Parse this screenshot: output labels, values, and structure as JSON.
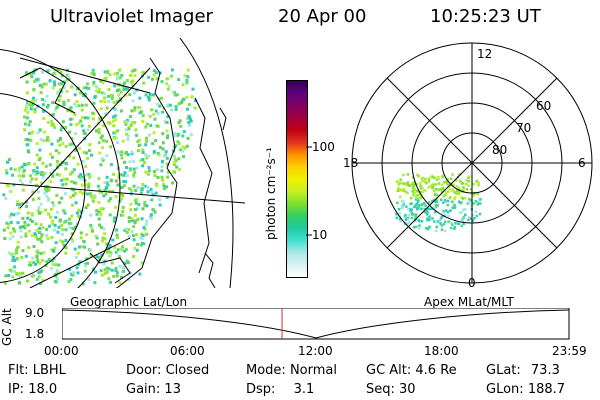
{
  "header": {
    "instrument": "Ultraviolet Imager",
    "date": "20 Apr 00",
    "time": "10:25:23 UT"
  },
  "colorbar": {
    "label": "photon cm⁻²s⁻¹",
    "ticks": [
      "100",
      "10"
    ],
    "colors": [
      "#ffffff",
      "#d8f0f0",
      "#a8e8e8",
      "#40e0d0",
      "#20c8a0",
      "#30d060",
      "#80e030",
      "#c8f020",
      "#f0f000",
      "#ffd000",
      "#ff9000",
      "#e03020",
      "#c00010",
      "#a00040",
      "#800060",
      "#600080",
      "#300050"
    ]
  },
  "polar": {
    "labels": {
      "top": "12",
      "bottom": "0",
      "left": "18",
      "right": "6"
    },
    "rings": [
      "60",
      "70",
      "80"
    ]
  },
  "timeline": {
    "left_label": "Geographic Lat/Lon",
    "right_label": "Apex MLat/MLT",
    "axis_title": "GC Alt",
    "y_ticks": [
      "9.0",
      "1.8"
    ],
    "x_ticks": [
      "00:00",
      "06:00",
      "12:00",
      "18:00",
      "23:59"
    ],
    "current_time_fraction": 0.434
  },
  "params": {
    "flt_label": "Flt:",
    "flt_value": "LBHL",
    "ip_label": "IP:",
    "ip_value": "18.0",
    "door_label": "Door:",
    "door_value": "Closed",
    "gain_label": "Gain:",
    "gain_value": "13",
    "mode_label": "Mode:",
    "mode_value": "Normal",
    "dsp_label": "Dsp:",
    "dsp_value": "3.1",
    "gcalt_label": "GC Alt:",
    "gcalt_value": "4.6 Re",
    "seq_label": "Seq:",
    "seq_value": "30",
    "glat_label": "GLat:",
    "glat_value": "73.3",
    "glon_label": "GLon:",
    "glon_value": "188.7"
  }
}
